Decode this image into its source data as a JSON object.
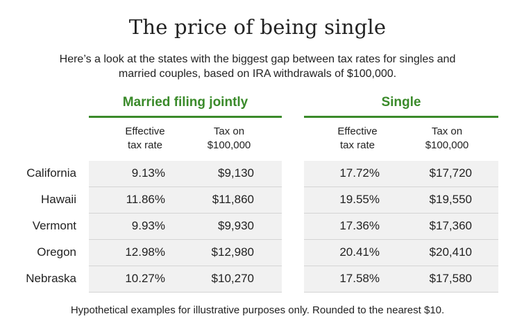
{
  "title": "The price of being single",
  "subtitle": "Here’s a look at the states with the biggest gap between tax rates for singles and married couples, based on IRA withdrawals of $100,000.",
  "groups": {
    "married": "Married filing jointly",
    "single": "Single"
  },
  "columns": {
    "married_rate": "Effective\ntax rate",
    "married_tax": "Tax on\n$100,000",
    "single_rate": "Effective\ntax rate",
    "single_tax": "Tax on\n$100,000"
  },
  "rows": [
    {
      "state": "California",
      "married_rate": "9.13%",
      "married_tax": "$9,130",
      "single_rate": "17.72%",
      "single_tax": "$17,720"
    },
    {
      "state": "Hawaii",
      "married_rate": "11.86%",
      "married_tax": "$11,860",
      "single_rate": "19.55%",
      "single_tax": "$19,550"
    },
    {
      "state": "Vermont",
      "married_rate": "9.93%",
      "married_tax": "$9,930",
      "single_rate": "17.36%",
      "single_tax": "$17,360"
    },
    {
      "state": "Oregon",
      "married_rate": "12.98%",
      "married_tax": "$12,980",
      "single_rate": "20.41%",
      "single_tax": "$20,410"
    },
    {
      "state": "Nebraska",
      "married_rate": "10.27%",
      "married_tax": "$10,270",
      "single_rate": "17.58%",
      "single_tax": "$17,580"
    }
  ],
  "footnote": "Hypothetical examples for illustrative purposes only. Rounded to the nearest $10.",
  "colors": {
    "accent": "#3a8a2a",
    "band": "#f1f1f1"
  }
}
